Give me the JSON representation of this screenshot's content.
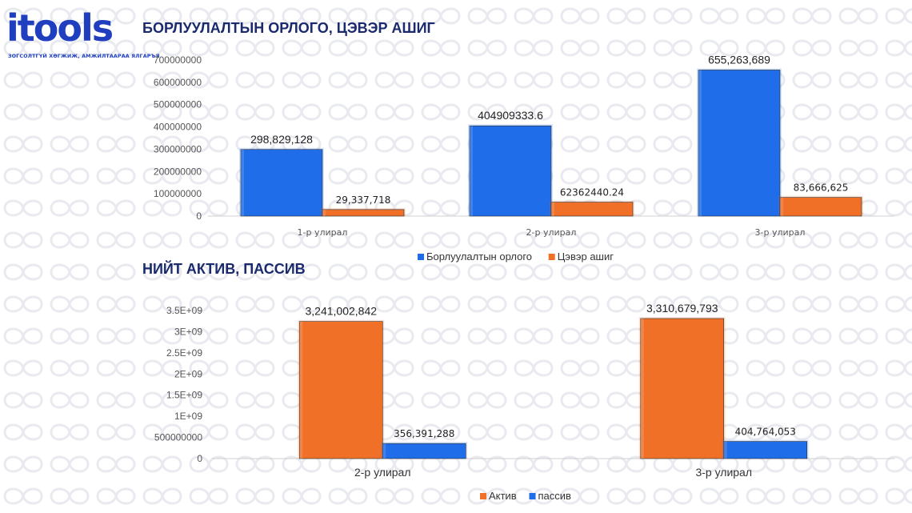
{
  "logo": {
    "wordmark": "itools",
    "tagline": "ЗОГСОЛТГҮЙ ХӨГЖИЖ, АМЖИЛТААРАА ЯЛГАРЪЯ"
  },
  "colors": {
    "revenue": "#1f6de8",
    "profit": "#f07028",
    "asset": "#f07028",
    "liability": "#1f6de8"
  },
  "chart_data": [
    {
      "type": "bar",
      "title": "БОРЛУУЛАЛТЫН ОРЛОГО, ЦЭВЭР АШИГ",
      "categories": [
        "1-р улирал",
        "2-р улирал",
        "3-р улирал"
      ],
      "ylim": [
        0,
        700000000
      ],
      "yticks": [
        "0",
        "100000000",
        "200000000",
        "300000000",
        "400000000",
        "500000000",
        "600000000",
        "700000000"
      ],
      "grid": false,
      "legend_position": "bottom",
      "series": [
        {
          "name": "Борлуулалтын орлого",
          "values": [
            298829128,
            404909333.6,
            655263689
          ],
          "labels": [
            "298,829,128",
            "404909333.6",
            "655,263,689"
          ]
        },
        {
          "name": "Цэвэр ашиг",
          "values": [
            29337718,
            62362440.24,
            83666625
          ],
          "labels": [
            "29,337,718",
            "62362440.24",
            "83,666,625"
          ]
        }
      ]
    },
    {
      "type": "bar",
      "title": "НИЙТ АКТИВ, ПАССИВ",
      "categories": [
        "2-р улирал",
        "3-р улирал"
      ],
      "ylim": [
        0,
        3500000000
      ],
      "yticks": [
        "0",
        "500000000",
        "1E+09",
        "1.5E+09",
        "2E+09",
        "2.5E+09",
        "3E+09",
        "3.5E+09"
      ],
      "grid": false,
      "legend_position": "bottom",
      "series": [
        {
          "name": "Актив",
          "values": [
            3241002842,
            3310679793
          ],
          "labels": [
            "3,241,002,842",
            "3,310,679,793"
          ]
        },
        {
          "name": "пассив",
          "values": [
            356391288,
            404764053
          ],
          "labels": [
            "356,391,288",
            "404,764,053"
          ]
        }
      ]
    }
  ]
}
